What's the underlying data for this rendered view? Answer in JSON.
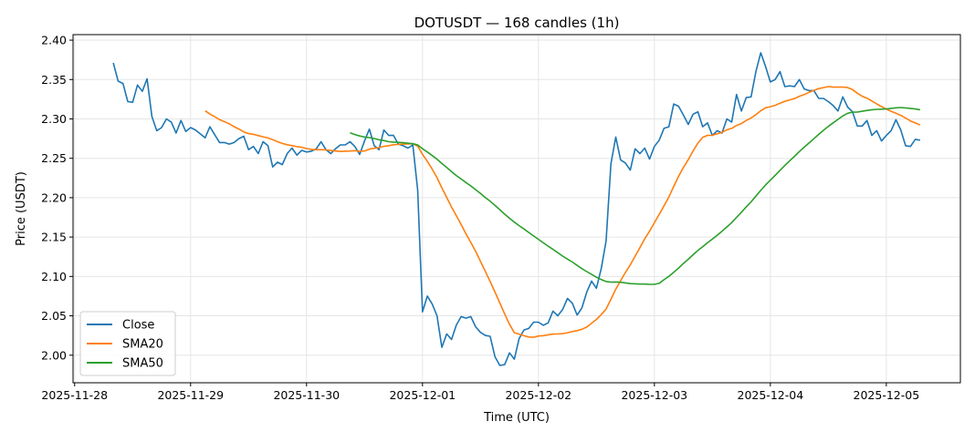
{
  "chart_data": {
    "type": "line",
    "title": "DOTUSDT — 168 candles (1h)",
    "xlabel": "Time (UTC)",
    "ylabel": "Price (USDT)",
    "x_start": "2025-11-28T08:00:00Z",
    "x_interval_hours": 1,
    "xlim": [
      "2025-11-27T23:40:00Z",
      "2025-12-05T15:20:00Z"
    ],
    "ylim": [
      1.965,
      2.407
    ],
    "xticks": [
      "2025-11-28",
      "2025-11-29",
      "2025-11-30",
      "2025-12-01",
      "2025-12-02",
      "2025-12-03",
      "2025-12-04",
      "2025-12-05"
    ],
    "yticks": [
      "2.00",
      "2.05",
      "2.10",
      "2.15",
      "2.20",
      "2.25",
      "2.30",
      "2.35",
      "2.40"
    ],
    "grid": true,
    "legend_placement": "lower-left",
    "series": [
      {
        "name": "Close",
        "color": "#1f77b4",
        "values": [
          2.371,
          2.348,
          2.345,
          2.322,
          2.321,
          2.343,
          2.335,
          2.351,
          2.303,
          2.285,
          2.289,
          2.3,
          2.296,
          2.282,
          2.298,
          2.284,
          2.289,
          2.286,
          2.281,
          2.276,
          2.29,
          2.28,
          2.27,
          2.27,
          2.268,
          2.27,
          2.275,
          2.278,
          2.261,
          2.265,
          2.256,
          2.271,
          2.266,
          2.239,
          2.245,
          2.242,
          2.256,
          2.263,
          2.254,
          2.26,
          2.258,
          2.259,
          2.262,
          2.271,
          2.261,
          2.256,
          2.262,
          2.267,
          2.267,
          2.271,
          2.265,
          2.255,
          2.272,
          2.287,
          2.266,
          2.261,
          2.286,
          2.279,
          2.279,
          2.268,
          2.266,
          2.263,
          2.267,
          2.21,
          2.055,
          2.075,
          2.065,
          2.05,
          2.01,
          2.027,
          2.02,
          2.038,
          2.049,
          2.047,
          2.049,
          2.036,
          2.029,
          2.025,
          2.024,
          1.998,
          1.987,
          1.988,
          2.003,
          1.995,
          2.021,
          2.032,
          2.034,
          2.042,
          2.042,
          2.038,
          2.041,
          2.056,
          2.05,
          2.058,
          2.072,
          2.066,
          2.051,
          2.06,
          2.08,
          2.094,
          2.085,
          2.11,
          2.145,
          2.243,
          2.277,
          2.248,
          2.244,
          2.235,
          2.262,
          2.256,
          2.263,
          2.249,
          2.265,
          2.273,
          2.288,
          2.29,
          2.319,
          2.316,
          2.305,
          2.293,
          2.306,
          2.309,
          2.29,
          2.295,
          2.279,
          2.285,
          2.282,
          2.3,
          2.296,
          2.331,
          2.31,
          2.327,
          2.328,
          2.36,
          2.384,
          2.367,
          2.347,
          2.35,
          2.36,
          2.341,
          2.342,
          2.341,
          2.35,
          2.338,
          2.336,
          2.336,
          2.326,
          2.326,
          2.322,
          2.317,
          2.31,
          2.328,
          2.315,
          2.309,
          2.291,
          2.291,
          2.298,
          2.279,
          2.285,
          2.272,
          2.279,
          2.285,
          2.299,
          2.286,
          2.266,
          2.265,
          2.274,
          2.273
        ]
      },
      {
        "name": "SMA20",
        "color": "#ff7f0e",
        "window": 20
      },
      {
        "name": "SMA50",
        "color": "#2ca02c",
        "window": 50
      }
    ]
  }
}
